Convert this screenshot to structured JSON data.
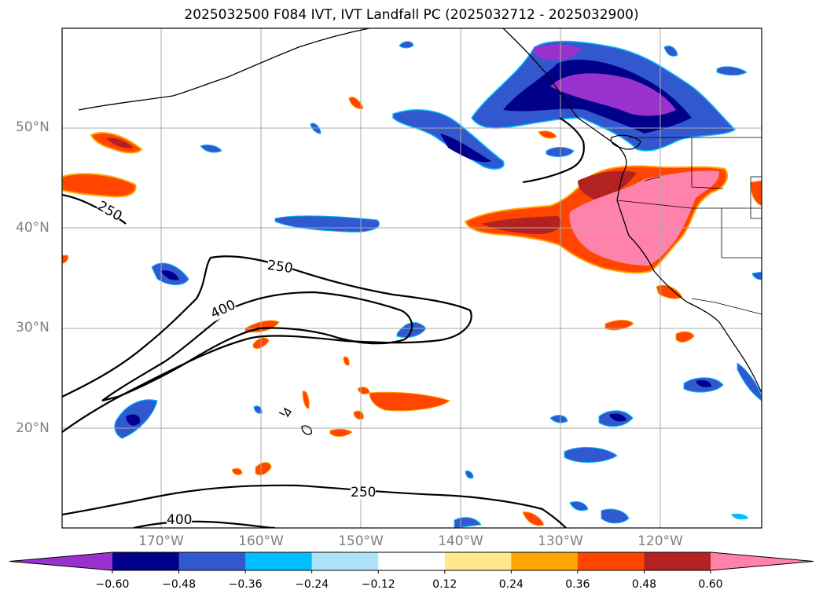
{
  "title": "2025032500 F084 IVT, IVT Landfall PC (2025032712 - 2025032900)",
  "map": {
    "lat_labels": [
      "50°N",
      "40°N",
      "30°N",
      "20°N"
    ],
    "lon_labels": [
      "170°W",
      "160°W",
      "150°W",
      "140°W",
      "130°W",
      "120°W"
    ],
    "contour_labels": [
      "250",
      "250",
      "400",
      "250",
      "400"
    ],
    "gridline_color": "#a9a9a9"
  },
  "colorbar": {
    "ticks": [
      "−0.60",
      "−0.48",
      "−0.36",
      "−0.24",
      "−0.12",
      "0.12",
      "0.24",
      "0.36",
      "0.48",
      "0.60"
    ],
    "colors": [
      "#9932cc",
      "#00008b",
      "#3258cf",
      "#00bfff",
      "#aee3fa",
      "#ffffff",
      "#ffe98c",
      "#ffa500",
      "#ff4500",
      "#b22222",
      "#ff82ab"
    ]
  }
}
